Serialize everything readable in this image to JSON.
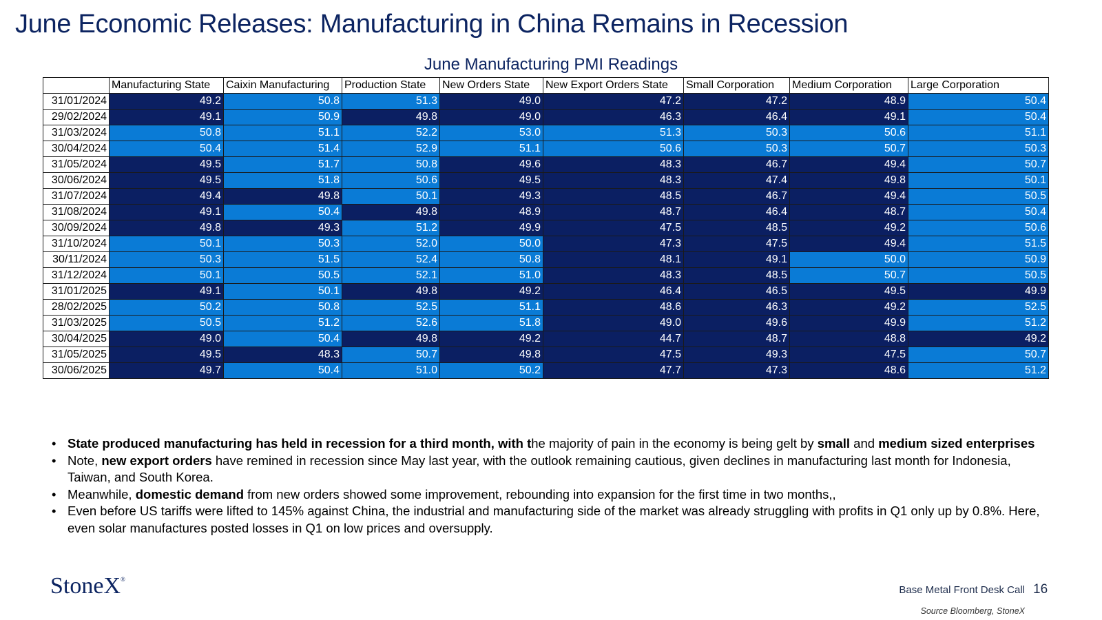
{
  "page": {
    "title": "June Economic Releases: Manufacturing in China Remains in Recession",
    "table_title": "June Manufacturing PMI Readings"
  },
  "colors": {
    "expansion": "#0a7bd6",
    "recession": "#0b1f62",
    "title": "#0c2461"
  },
  "chart_data": {
    "type": "table",
    "title": "June Manufacturing PMI Readings",
    "threshold": 50,
    "columns": [
      "",
      "Manufacturing State",
      "Caixin Manufacturing",
      "Production State",
      "New Orders State",
      "New Export Orders State",
      "Small Corporation",
      "Medium Corporation",
      "Large Corporation"
    ],
    "rows": [
      {
        "date": "31/01/2024",
        "values": [
          "49.2",
          "50.8",
          "51.3",
          "49.0",
          "47.2",
          "47.2",
          "48.9",
          "50.4"
        ]
      },
      {
        "date": "29/02/2024",
        "values": [
          "49.1",
          "50.9",
          "49.8",
          "49.0",
          "46.3",
          "46.4",
          "49.1",
          "50.4"
        ]
      },
      {
        "date": "31/03/2024",
        "values": [
          "50.8",
          "51.1",
          "52.2",
          "53.0",
          "51.3",
          "50.3",
          "50.6",
          "51.1"
        ]
      },
      {
        "date": "30/04/2024",
        "values": [
          "50.4",
          "51.4",
          "52.9",
          "51.1",
          "50.6",
          "50.3",
          "50.7",
          "50.3"
        ]
      },
      {
        "date": "31/05/2024",
        "values": [
          "49.5",
          "51.7",
          "50.8",
          "49.6",
          "48.3",
          "46.7",
          "49.4",
          "50.7"
        ]
      },
      {
        "date": "30/06/2024",
        "values": [
          "49.5",
          "51.8",
          "50.6",
          "49.5",
          "48.3",
          "47.4",
          "49.8",
          "50.1"
        ]
      },
      {
        "date": "31/07/2024",
        "values": [
          "49.4",
          "49.8",
          "50.1",
          "49.3",
          "48.5",
          "46.7",
          "49.4",
          "50.5"
        ]
      },
      {
        "date": "31/08/2024",
        "values": [
          "49.1",
          "50.4",
          "49.8",
          "48.9",
          "48.7",
          "46.4",
          "48.7",
          "50.4"
        ]
      },
      {
        "date": "30/09/2024",
        "values": [
          "49.8",
          "49.3",
          "51.2",
          "49.9",
          "47.5",
          "48.5",
          "49.2",
          "50.6"
        ]
      },
      {
        "date": "31/10/2024",
        "values": [
          "50.1",
          "50.3",
          "52.0",
          "50.0",
          "47.3",
          "47.5",
          "49.4",
          "51.5"
        ]
      },
      {
        "date": "30/11/2024",
        "values": [
          "50.3",
          "51.5",
          "52.4",
          "50.8",
          "48.1",
          "49.1",
          "50.0",
          "50.9"
        ]
      },
      {
        "date": "31/12/2024",
        "values": [
          "50.1",
          "50.5",
          "52.1",
          "51.0",
          "48.3",
          "48.5",
          "50.7",
          "50.5"
        ]
      },
      {
        "date": "31/01/2025",
        "values": [
          "49.1",
          "50.1",
          "49.8",
          "49.2",
          "46.4",
          "46.5",
          "49.5",
          "49.9"
        ]
      },
      {
        "date": "28/02/2025",
        "values": [
          "50.2",
          "50.8",
          "52.5",
          "51.1",
          "48.6",
          "46.3",
          "49.2",
          "52.5"
        ]
      },
      {
        "date": "31/03/2025",
        "values": [
          "50.5",
          "51.2",
          "52.6",
          "51.8",
          "49.0",
          "49.6",
          "49.9",
          "51.2"
        ]
      },
      {
        "date": "30/04/2025",
        "values": [
          "49.0",
          "50.4",
          "49.8",
          "49.2",
          "44.7",
          "48.7",
          "48.8",
          "49.2"
        ]
      },
      {
        "date": "31/05/2025",
        "values": [
          "49.5",
          "48.3",
          "50.7",
          "49.8",
          "47.5",
          "49.3",
          "47.5",
          "50.7"
        ]
      },
      {
        "date": "30/06/2025",
        "values": [
          "49.7",
          "50.4",
          "51.0",
          "50.2",
          "47.7",
          "47.3",
          "48.6",
          "51.2"
        ]
      }
    ]
  },
  "bullets": [
    {
      "parts": [
        {
          "text": "State produced manufacturing has held in recession for a third month, with t",
          "bold": true
        },
        {
          "text": "he majority of pain in the economy is being gelt by ",
          "bold": false
        },
        {
          "text": "small",
          "bold": true
        },
        {
          "text": " and ",
          "bold": false
        },
        {
          "text": "medium sized enterprises",
          "bold": true
        }
      ]
    },
    {
      "parts": [
        {
          "text": "Note, ",
          "bold": false
        },
        {
          "text": "new export orders",
          "bold": true
        },
        {
          "text": " have remined in recession since May last year, with the outlook remaining cautious, given declines in manufacturing last month for Indonesia, Taiwan, and South Korea.",
          "bold": false
        }
      ]
    },
    {
      "parts": [
        {
          "text": "Meanwhile, ",
          "bold": false
        },
        {
          "text": "domestic demand",
          "bold": true
        },
        {
          "text": " from new orders showed some improvement, rebounding into expansion for the first time in two months,,",
          "bold": false
        }
      ]
    },
    {
      "parts": [
        {
          "text": "Even before US tariffs were lifted to 145% against China, the industrial and manufacturing side of the market was already struggling with profits in Q1 only up by 0.8%. Here, even solar manufactures posted losses in Q1 on low prices and oversupply.",
          "bold": false
        }
      ]
    }
  ],
  "footer": {
    "logo": "StoneX",
    "logo_mark": "®",
    "label": "Base Metal Front Desk Call",
    "page_number": "16",
    "source": "Source Bloomberg, StoneX"
  }
}
